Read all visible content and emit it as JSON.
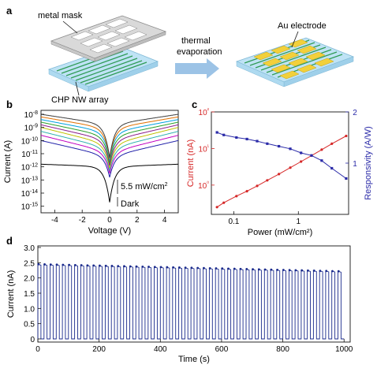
{
  "panel_a": {
    "label": "a",
    "metal_mask_label": "metal mask",
    "nw_array_label": "CHP NW array",
    "arrow_label_line1": "thermal",
    "arrow_label_line2": "evaporation",
    "electrode_label": "Au electrode"
  },
  "colors": {
    "mask": "#d9d9d9",
    "substrate": "#bfe3f5",
    "nanowire": "#2e9b55",
    "electrode": "#f2d03b",
    "arrow": "#9cc3e6",
    "current": "#d62828",
    "responsivity": "#2a2aa8",
    "panel_d": "#1a2a8c"
  },
  "chart_data": [
    {
      "panel": "b",
      "type": "line",
      "xlabel": "Voltage (V)",
      "ylabel": "Current (A)",
      "xlim": [
        -5,
        5
      ],
      "xticks": [
        -4,
        -2,
        0,
        2,
        4
      ],
      "yscale": "log",
      "ylim_exp": [
        -15.5,
        -7.7
      ],
      "yticks_exp": [
        -15,
        -14,
        -13,
        -12,
        -11,
        -10,
        -9,
        -8
      ],
      "ytick_labels": [
        "10-15",
        "10-14",
        "10-13",
        "10-12",
        "10-11",
        "10-10",
        "10-9",
        "10-8"
      ],
      "annotations": [
        "5.5 mW/cm2",
        "Dark"
      ],
      "series_floor_exp": [
        -12,
        -11.2,
        -10.9,
        -10.6,
        -10.3,
        -10.0,
        -9.7,
        -9.4,
        -9.1,
        -8.8
      ],
      "series_edge_exp": [
        -11.8,
        -10.0,
        -9.6,
        -9.3,
        -9.0,
        -8.8,
        -8.6,
        -8.4,
        -8.2,
        -8.0
      ],
      "series_dip_exp": [
        -14.7,
        -12.8,
        -12.5,
        -12.3,
        -12.1,
        -11.9,
        -11.7,
        -11.5,
        -11.4,
        -11.3
      ],
      "series_colors": [
        "#000000",
        "#1f1fa8",
        "#c000c0",
        "#2fb0b0",
        "#c0c000",
        "#8a1a8a",
        "#2aa02a",
        "#00a0e0",
        "#e07000",
        "#404040"
      ]
    },
    {
      "panel": "c",
      "type": "line",
      "xlabel": "Power (mW/cm²)",
      "ylabel_left": "Current (nA)",
      "ylabel_right": "Responsivity (A/W)",
      "xscale": "log",
      "xlim": [
        0.045,
        6
      ],
      "xticks": [
        0.1,
        1
      ],
      "xtick_labels": [
        "0.1",
        "1"
      ],
      "yscale_left": "log",
      "ylim_left_exp": [
        -0.8,
        2
      ],
      "ytick_labels_left": [
        "10⁰",
        "10¹",
        "10²"
      ],
      "ylim_right": [
        0,
        2
      ],
      "ytick_labels_right": [
        "1",
        "2"
      ],
      "x": [
        0.055,
        0.07,
        0.11,
        0.16,
        0.23,
        0.33,
        0.5,
        0.75,
        1.1,
        1.6,
        2.3,
        3.3,
        5.5
      ],
      "current_nA": [
        0.25,
        0.33,
        0.5,
        0.68,
        0.95,
        1.35,
        2.0,
        3.0,
        4.4,
        6.4,
        9.3,
        13.5,
        22
      ],
      "responsivity_AW": [
        1.6,
        1.55,
        1.5,
        1.47,
        1.43,
        1.38,
        1.33,
        1.28,
        1.2,
        1.15,
        1.05,
        0.9,
        0.7
      ]
    },
    {
      "panel": "d",
      "type": "line",
      "xlabel": "Time (s)",
      "ylabel": "Current (nA)",
      "xlim": [
        0,
        1020
      ],
      "xticks": [
        0,
        200,
        400,
        600,
        800,
        1000
      ],
      "ylim": [
        0,
        3.0
      ],
      "yticks": [
        0,
        0.5,
        1.0,
        1.5,
        2.0,
        2.5,
        3.0
      ],
      "ytick_labels": [
        "0",
        "0.5",
        "1.0",
        "1.5",
        "2.0",
        "2.5",
        "3.0"
      ],
      "period_s": 20,
      "on_duty": 0.5,
      "cycles": 50,
      "peak_start_nA": 2.45,
      "peak_end_nA": 2.22,
      "off_nA": 0.0
    }
  ],
  "panel_b": {
    "label": "b",
    "x_label": "Voltage (V)",
    "y_label": "Current (A)",
    "light_label": "5.5 mW/cm",
    "light_sup": "2",
    "dark_label": "Dark"
  },
  "panel_c": {
    "label": "c",
    "x_label": "Power (mW/cm²)",
    "y_left_label": "Current (nA)",
    "y_right_label": "Responsivity (A/W)"
  },
  "panel_d": {
    "label": "d",
    "x_label": "Time (s)",
    "y_label": "Current (nA)"
  }
}
